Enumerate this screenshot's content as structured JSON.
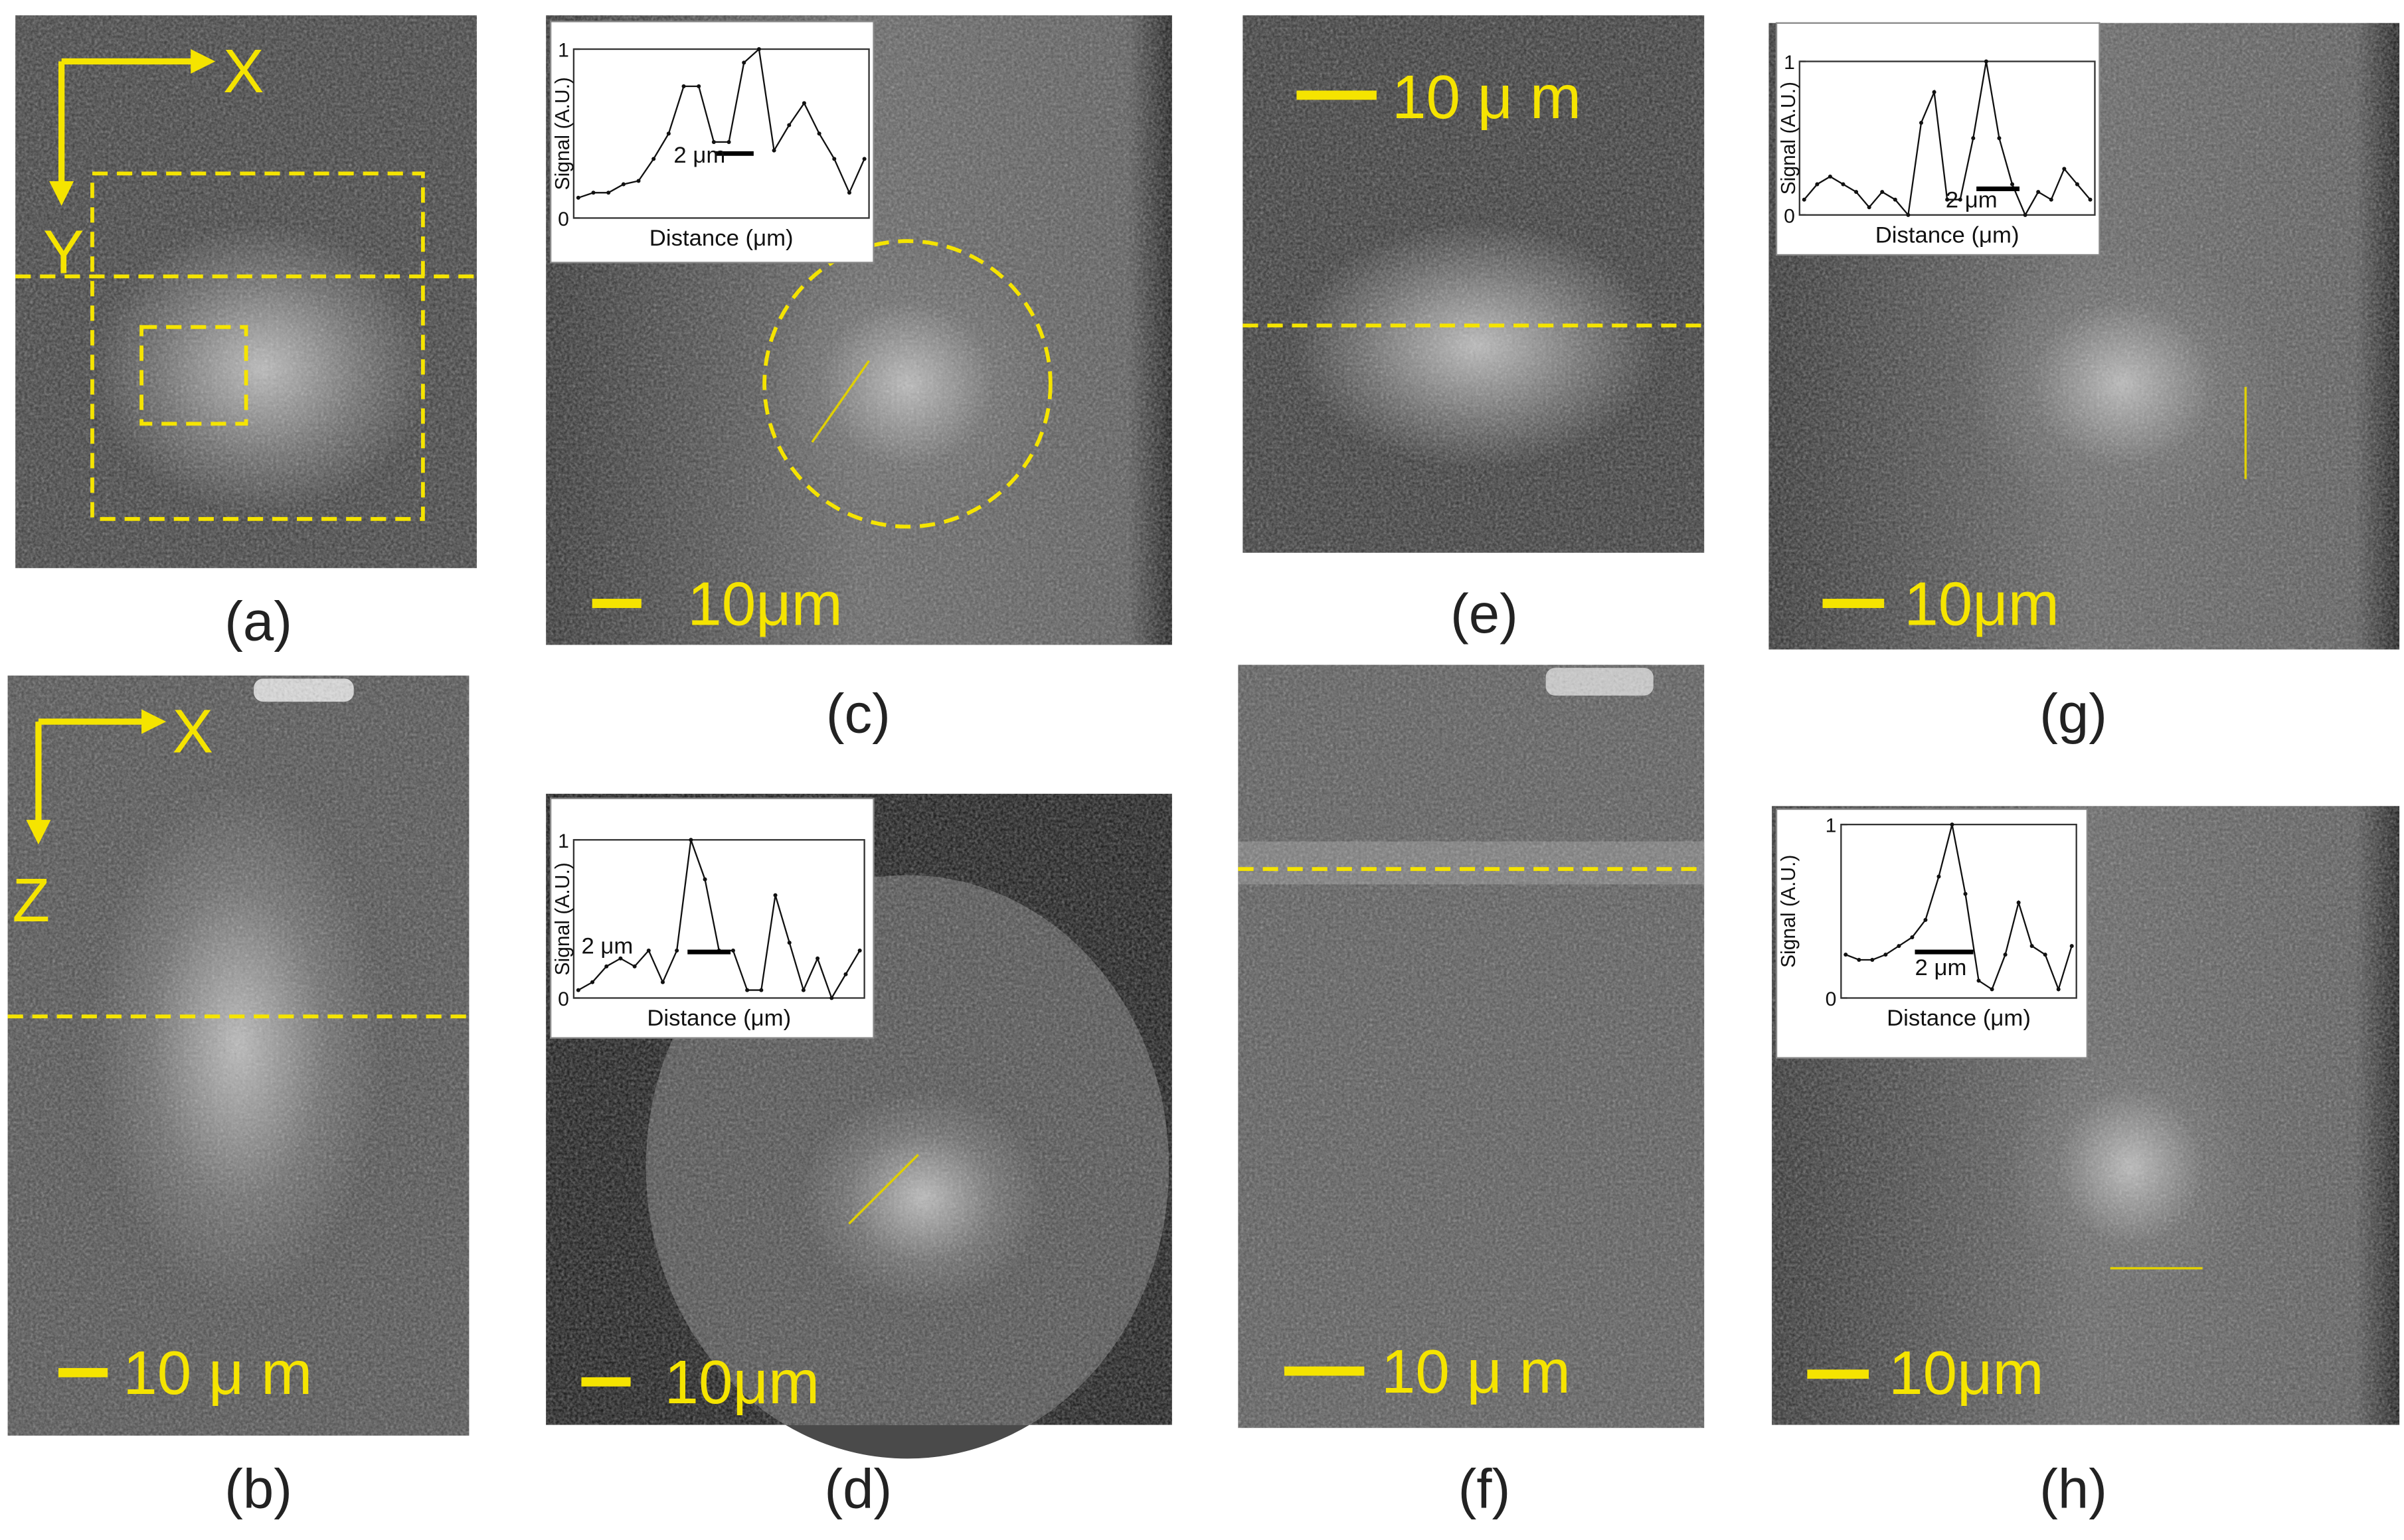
{
  "panels": [
    {
      "label": "(a)",
      "axis_labels": [
        "X",
        "Y"
      ]
    },
    {
      "label": "(b)",
      "axis_labels": [
        "X",
        "Z"
      ],
      "scale_bar": "10 μ m"
    },
    {
      "label": "(c)",
      "scale_bar": "10μm",
      "inset": {
        "y_label": "Signal (A.U.)",
        "x_label": "Distance (μm)",
        "yticks": [
          0,
          1
        ],
        "ylim": [
          0,
          1
        ],
        "width_label": "2 μm",
        "values": [
          0.12,
          0.15,
          0.15,
          0.2,
          0.22,
          0.35,
          0.5,
          0.78,
          0.78,
          0.45,
          0.45,
          0.92,
          1,
          0.4,
          0.55,
          0.68,
          0.5,
          0.35,
          0.15,
          0.35
        ]
      }
    },
    {
      "label": "(d)",
      "scale_bar": "10μm",
      "inset": {
        "y_label": "Signal (A.U.)",
        "x_label": "Distance (μm)",
        "yticks": [
          0,
          1
        ],
        "ylim": [
          0,
          1
        ],
        "width_label": "2 μm",
        "values": [
          0.05,
          0.1,
          0.2,
          0.25,
          0.2,
          0.3,
          0.1,
          0.3,
          1,
          0.75,
          0.3,
          0.3,
          0.05,
          0.05,
          0.65,
          0.35,
          0.05,
          0.25,
          0,
          0.15,
          0.3
        ]
      }
    },
    {
      "label": "(e)",
      "scale_bar": "10 μ m"
    },
    {
      "label": "(f)",
      "scale_bar": "10 μ m"
    },
    {
      "label": "(g)",
      "scale_bar": "10μm",
      "inset": {
        "y_label": "Signal (A.U.)",
        "x_label": "Distance (μm)",
        "yticks": [
          0,
          1
        ],
        "ylim": [
          0,
          1
        ],
        "width_label": "2 μm",
        "values": [
          0.1,
          0.2,
          0.25,
          0.2,
          0.15,
          0.05,
          0.15,
          0.1,
          0,
          0.6,
          0.8,
          0.1,
          0.1,
          0.5,
          1,
          0.5,
          0.2,
          0,
          0.15,
          0.1,
          0.3,
          0.2,
          0.1
        ]
      }
    },
    {
      "label": "(h)",
      "scale_bar": "10μm",
      "inset": {
        "y_label": "Signal (A.U.)",
        "x_label": "Distance (μm)",
        "yticks": [
          0,
          1
        ],
        "ylim": [
          0,
          1
        ],
        "width_label": "2 μm",
        "values": [
          0.25,
          0.22,
          0.22,
          0.25,
          0.3,
          0.35,
          0.45,
          0.7,
          1,
          0.6,
          0.1,
          0.05,
          0.25,
          0.55,
          0.3,
          0.25,
          0.05,
          0.3
        ]
      }
    }
  ]
}
